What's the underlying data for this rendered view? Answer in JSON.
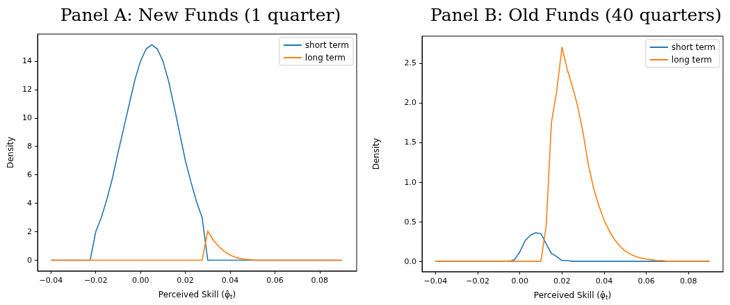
{
  "chart_data": [
    {
      "type": "line",
      "title": "Panel A: New Funds (1 quarter)",
      "xlabel": "Perceived Skill (φ̂$_{t}$)",
      "ylabel": "Density",
      "xlim": [
        -0.046,
        0.0965
      ],
      "ylim": [
        -0.76,
        15.9
      ],
      "xticks": [
        {
          "value": -0.04,
          "label": "−0.04"
        },
        {
          "value": -0.02,
          "label": "−0.02"
        },
        {
          "value": 0,
          "label": "0.00"
        },
        {
          "value": 0.02,
          "label": "0.02"
        },
        {
          "value": 0.04,
          "label": "0.04"
        },
        {
          "value": 0.06,
          "label": "0.06"
        },
        {
          "value": 0.08,
          "label": "0.08"
        }
      ],
      "yticks": [
        0,
        2,
        4,
        6,
        8,
        10,
        12,
        14
      ],
      "grid": false,
      "legend": "top right",
      "marker": "none",
      "line_style": "solid",
      "series": [
        {
          "name": "short term",
          "color": "#1f77b4",
          "x": [
            -0.04,
            -0.0225,
            -0.02,
            -0.0175,
            -0.015,
            -0.0125,
            -0.01,
            -0.0075,
            -0.005,
            -0.0025,
            0,
            0.0025,
            0.005,
            0.0075,
            0.01,
            0.0125,
            0.015,
            0.0175,
            0.02,
            0.0225,
            0.025,
            0.0275,
            0.03,
            0.09
          ],
          "values": [
            0,
            0,
            2.0,
            3.0,
            4.3,
            5.8,
            7.6,
            9.3,
            11.0,
            12.7,
            14.0,
            14.85,
            15.15,
            14.85,
            14.0,
            12.6,
            10.8,
            8.9,
            7.0,
            5.5,
            4.1,
            3.0,
            0,
            0
          ]
        },
        {
          "name": "long term",
          "color": "#ff7f0e",
          "x": [
            -0.04,
            0.0275,
            0.03,
            0.0325,
            0.035,
            0.0375,
            0.04,
            0.0425,
            0.045,
            0.0475,
            0.05,
            0.0525,
            0.09
          ],
          "values": [
            0,
            0,
            2.05,
            1.4,
            0.95,
            0.6,
            0.35,
            0.2,
            0.1,
            0.05,
            0.02,
            0,
            0
          ]
        }
      ]
    },
    {
      "type": "line",
      "title": "Panel B: Old Funds (40 quarters)",
      "xlabel": "Perceived Skill (φ̂$_{t}$)",
      "ylabel": "Density",
      "xlim": [
        -0.0464,
        0.0964
      ],
      "ylim": [
        -0.13,
        2.84
      ],
      "xticks": [
        {
          "value": -0.04,
          "label": "−0.04"
        },
        {
          "value": -0.02,
          "label": "−0.02"
        },
        {
          "value": 0,
          "label": "0.00"
        },
        {
          "value": 0.02,
          "label": "0.02"
        },
        {
          "value": 0.04,
          "label": "0.04"
        },
        {
          "value": 0.06,
          "label": "0.06"
        },
        {
          "value": 0.08,
          "label": "0.08"
        }
      ],
      "yticks": [
        {
          "value": 0,
          "label": "0.0"
        },
        {
          "value": 0.5,
          "label": "0.5"
        },
        {
          "value": 1,
          "label": "1.0"
        },
        {
          "value": 1.5,
          "label": "1.5"
        },
        {
          "value": 2,
          "label": "2.0"
        },
        {
          "value": 2.5,
          "label": "2.5"
        }
      ],
      "grid": false,
      "legend": "top right",
      "marker": "none",
      "line_style": "solid",
      "series": [
        {
          "name": "short term",
          "color": "#1f77b4",
          "x": [
            -0.04,
            -0.005,
            -0.0025,
            0,
            0.0025,
            0.005,
            0.0075,
            0.01,
            0.0125,
            0.015,
            0.0175,
            0.02,
            0.0225,
            0.025,
            0.09
          ],
          "values": [
            0,
            0,
            0.02,
            0.12,
            0.26,
            0.33,
            0.36,
            0.35,
            0.22,
            0.1,
            0.06,
            0.01,
            0.01,
            0,
            0
          ]
        },
        {
          "name": "long term",
          "color": "#ff7f0e",
          "x": [
            -0.04,
            0.01,
            0.0125,
            0.015,
            0.0175,
            0.02,
            0.0225,
            0.025,
            0.0275,
            0.03,
            0.0325,
            0.035,
            0.0375,
            0.04,
            0.0425,
            0.045,
            0.0475,
            0.05,
            0.0525,
            0.055,
            0.0575,
            0.06,
            0.0625,
            0.065,
            0.0675,
            0.07,
            0.09
          ],
          "values": [
            0,
            0,
            0.45,
            1.75,
            2.15,
            2.7,
            2.42,
            2.2,
            1.95,
            1.62,
            1.22,
            0.92,
            0.7,
            0.52,
            0.38,
            0.27,
            0.19,
            0.13,
            0.09,
            0.06,
            0.04,
            0.03,
            0.02,
            0.01,
            0.01,
            0,
            0
          ]
        }
      ]
    }
  ]
}
